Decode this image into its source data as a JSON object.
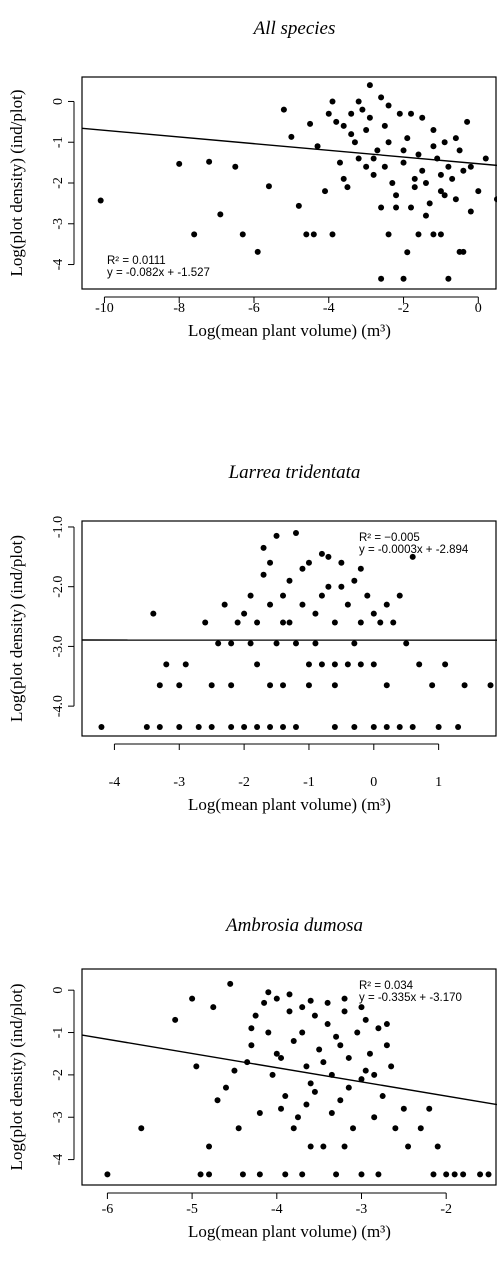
{
  "chart_data": [
    {
      "type": "scatter",
      "title": "All species",
      "xlabel": "Log(mean plant volume) (m³)",
      "ylabel": "Log(plot density) (ind/plot)",
      "xlim": [
        -10.6,
        0.5
      ],
      "ylim": [
        -4.6,
        0.6
      ],
      "xticks": [
        -10,
        -8,
        -6,
        -4,
        -2,
        0
      ],
      "yticks": [
        -4,
        -3,
        -2,
        -1,
        0
      ],
      "grid": false,
      "annotation": {
        "r2": "R² = 0.0111",
        "equation": "y = -0.082x + -1.527",
        "placement": "bottom-left"
      },
      "regression": {
        "slope": -0.082,
        "intercept": -1.527
      },
      "points": [
        [
          -10.1,
          -2.43
        ],
        [
          -8.0,
          -1.53
        ],
        [
          -7.6,
          -3.26
        ],
        [
          -7.2,
          -1.48
        ],
        [
          -6.9,
          -2.77
        ],
        [
          -6.5,
          -1.6
        ],
        [
          -6.3,
          -3.26
        ],
        [
          -5.9,
          -3.69
        ],
        [
          -5.6,
          -2.08
        ],
        [
          -5.2,
          -0.2
        ],
        [
          -5.0,
          -0.87
        ],
        [
          -4.8,
          -2.56
        ],
        [
          -4.5,
          -0.55
        ],
        [
          -4.3,
          -1.1
        ],
        [
          -4.1,
          -2.2
        ],
        [
          -3.9,
          -3.26
        ],
        [
          -4.4,
          -3.26
        ],
        [
          -4.6,
          -3.26
        ],
        [
          -3.8,
          -0.5
        ],
        [
          -3.6,
          -1.9
        ],
        [
          -3.4,
          -0.3
        ],
        [
          -3.2,
          -1.4
        ],
        [
          -3.0,
          -0.7
        ],
        [
          -2.8,
          -1.8
        ],
        [
          -2.6,
          -2.6
        ],
        [
          -2.4,
          -1.0
        ],
        [
          -2.2,
          -2.3
        ],
        [
          -2.0,
          -1.5
        ],
        [
          -1.8,
          -2.6
        ],
        [
          -1.6,
          -1.3
        ],
        [
          -1.4,
          -2.8
        ],
        [
          -1.2,
          -1.1
        ],
        [
          -1.0,
          -2.2
        ],
        [
          -0.8,
          -1.6
        ],
        [
          -0.6,
          -2.4
        ],
        [
          -0.4,
          -1.7
        ],
        [
          -0.2,
          -2.7
        ],
        [
          0.0,
          -2.2
        ],
        [
          -2.9,
          -0.4
        ],
        [
          -3.1,
          -0.2
        ],
        [
          -2.5,
          -0.6
        ],
        [
          -1.9,
          -0.9
        ],
        [
          -1.5,
          -0.4
        ],
        [
          -3.3,
          -1.0
        ],
        [
          -2.7,
          -1.2
        ],
        [
          -2.1,
          -0.3
        ],
        [
          -1.7,
          -1.9
        ],
        [
          -1.1,
          -1.4
        ],
        [
          -0.5,
          -1.2
        ],
        [
          -0.3,
          -0.5
        ],
        [
          -3.7,
          -1.5
        ],
        [
          -3.5,
          -2.1
        ],
        [
          -2.3,
          -2.0
        ],
        [
          -1.3,
          -2.5
        ],
        [
          -0.7,
          -1.9
        ],
        [
          -0.9,
          -1.0
        ],
        [
          -2.0,
          -4.35
        ],
        [
          -2.6,
          -4.35
        ],
        [
          -0.8,
          -4.35
        ],
        [
          -1.9,
          -3.7
        ],
        [
          -1.6,
          -3.26
        ],
        [
          -1.2,
          -3.26
        ],
        [
          -2.4,
          -3.26
        ],
        [
          -0.4,
          -3.69
        ],
        [
          -0.5,
          -3.69
        ],
        [
          -1.0,
          -3.26
        ],
        [
          -2.2,
          -2.6
        ],
        [
          -1.4,
          -2.0
        ],
        [
          -3.0,
          -1.6
        ],
        [
          -4.0,
          -0.3
        ],
        [
          -3.9,
          0.0
        ],
        [
          -2.6,
          0.1
        ],
        [
          -2.9,
          0.4
        ],
        [
          -3.2,
          0.0
        ],
        [
          -1.8,
          -0.3
        ],
        [
          -2.4,
          -0.1
        ],
        [
          -1.2,
          -0.7
        ],
        [
          -0.6,
          -0.9
        ],
        [
          -1.5,
          -1.7
        ],
        [
          -2.8,
          -1.4
        ],
        [
          -3.4,
          -0.8
        ],
        [
          -2.0,
          -1.2
        ],
        [
          -1.0,
          -1.8
        ],
        [
          -0.2,
          -1.6
        ],
        [
          0.2,
          -1.4
        ],
        [
          0.5,
          -2.4
        ],
        [
          -0.9,
          -2.3
        ],
        [
          -1.7,
          -2.1
        ],
        [
          -2.5,
          -1.6
        ],
        [
          -3.6,
          -0.6
        ]
      ]
    },
    {
      "type": "scatter",
      "title": "Larrea tridentata",
      "xlabel": "Log(mean plant volume) (m³)",
      "ylabel": "Log(plot density) (ind/plot)",
      "xlim": [
        -4.5,
        1.9
      ],
      "ylim": [
        -4.5,
        -0.9
      ],
      "xticks": [
        -4,
        -3,
        -2,
        -1,
        0,
        1
      ],
      "yticks": [
        -4.0,
        -3.0,
        -2.0,
        -1.0
      ],
      "ytick_labels": [
        "-4.0",
        "-3.0",
        "-2.0",
        "-1.0"
      ],
      "grid": false,
      "annotation": {
        "r2": "R² = −0.005",
        "equation": "y = -0.0003x + -2.894",
        "placement": "top-right"
      },
      "regression": {
        "slope": -0.0003,
        "intercept": -2.894
      },
      "points": [
        [
          -3.4,
          -2.45
        ],
        [
          -3.2,
          -3.3
        ],
        [
          -3.3,
          -3.65
        ],
        [
          -3.0,
          -3.65
        ],
        [
          -2.9,
          -3.3
        ],
        [
          -2.6,
          -2.6
        ],
        [
          -2.5,
          -3.65
        ],
        [
          -2.4,
          -2.95
        ],
        [
          -2.2,
          -3.65
        ],
        [
          -2.0,
          -2.45
        ],
        [
          -1.9,
          -2.15
        ],
        [
          -1.8,
          -2.6
        ],
        [
          -1.7,
          -1.35
        ],
        [
          -1.6,
          -2.3
        ],
        [
          -1.5,
          -1.15
        ],
        [
          -1.4,
          -2.6
        ],
        [
          -1.3,
          -1.9
        ],
        [
          -1.2,
          -1.1
        ],
        [
          -1.1,
          -2.3
        ],
        [
          -1.0,
          -1.6
        ],
        [
          -0.9,
          -2.45
        ],
        [
          -0.8,
          -1.45
        ],
        [
          -0.7,
          -2.0
        ],
        [
          -0.6,
          -2.6
        ],
        [
          -0.5,
          -1.6
        ],
        [
          -0.4,
          -2.3
        ],
        [
          -0.3,
          -1.9
        ],
        [
          -0.2,
          -1.7
        ],
        [
          -0.1,
          -2.15
        ],
        [
          0.0,
          -2.45
        ],
        [
          0.1,
          -2.6
        ],
        [
          0.2,
          -2.3
        ],
        [
          0.3,
          -2.6
        ],
        [
          0.5,
          -2.95
        ],
        [
          0.7,
          -3.3
        ],
        [
          0.9,
          -3.65
        ],
        [
          1.1,
          -3.3
        ],
        [
          1.4,
          -3.65
        ],
        [
          1.8,
          -3.65
        ],
        [
          0.6,
          -1.5
        ],
        [
          -1.5,
          -2.95
        ],
        [
          -1.2,
          -2.95
        ],
        [
          -1.0,
          -3.3
        ],
        [
          -0.8,
          -3.3
        ],
        [
          -0.6,
          -3.3
        ],
        [
          -0.4,
          -3.3
        ],
        [
          -0.2,
          -3.3
        ],
        [
          0.0,
          -3.3
        ],
        [
          0.2,
          -3.65
        ],
        [
          -1.8,
          -3.3
        ],
        [
          -1.4,
          -3.65
        ],
        [
          -1.0,
          -3.65
        ],
        [
          -0.6,
          -3.65
        ],
        [
          -2.2,
          -2.95
        ],
        [
          -0.3,
          -2.95
        ],
        [
          -0.9,
          -2.95
        ],
        [
          -1.6,
          -3.65
        ],
        [
          -2.1,
          -2.6
        ],
        [
          -1.3,
          -2.6
        ],
        [
          -0.5,
          -2.0
        ],
        [
          -3.5,
          -4.35
        ],
        [
          -3.3,
          -4.35
        ],
        [
          -3.0,
          -4.35
        ],
        [
          -2.7,
          -4.35
        ],
        [
          -2.5,
          -4.35
        ],
        [
          -2.2,
          -4.35
        ],
        [
          -2.0,
          -4.35
        ],
        [
          -1.8,
          -4.35
        ],
        [
          -1.6,
          -4.35
        ],
        [
          -1.4,
          -4.35
        ],
        [
          -1.2,
          -4.35
        ],
        [
          -0.6,
          -4.35
        ],
        [
          -0.3,
          -4.35
        ],
        [
          0.0,
          -4.35
        ],
        [
          0.2,
          -4.35
        ],
        [
          0.4,
          -4.35
        ],
        [
          0.6,
          -4.35
        ],
        [
          1.0,
          -4.35
        ],
        [
          1.3,
          -4.35
        ],
        [
          -4.2,
          -4.35
        ],
        [
          -1.7,
          -1.8
        ],
        [
          -1.1,
          -1.7
        ],
        [
          -0.7,
          -1.5
        ],
        [
          -1.4,
          -2.15
        ],
        [
          -0.2,
          -2.6
        ],
        [
          -2.3,
          -2.3
        ],
        [
          -1.9,
          -2.95
        ],
        [
          0.4,
          -2.15
        ],
        [
          -0.8,
          -2.15
        ],
        [
          -1.6,
          -1.6
        ]
      ]
    },
    {
      "type": "scatter",
      "title": "Ambrosia dumosa",
      "xlabel": "Log(mean plant volume) (m³)",
      "ylabel": "Log(plot density) (ind/plot)",
      "xlim": [
        -6.3,
        -1.4
      ],
      "ylim": [
        -4.6,
        0.5
      ],
      "xticks": [
        -6,
        -5,
        -4,
        -3,
        -2
      ],
      "yticks": [
        -4,
        -3,
        -2,
        -1,
        0
      ],
      "grid": false,
      "annotation": {
        "r2": "R² = 0.034",
        "equation": "y = -0.335x + -3.170",
        "placement": "top-right"
      },
      "regression": {
        "slope": -0.335,
        "intercept": -3.17
      },
      "points": [
        [
          -6.0,
          -4.35
        ],
        [
          -5.6,
          -3.26
        ],
        [
          -5.2,
          -0.7
        ],
        [
          -5.0,
          -0.2
        ],
        [
          -4.95,
          -1.8
        ],
        [
          -4.9,
          -4.35
        ],
        [
          -4.8,
          -3.69
        ],
        [
          -4.75,
          -0.4
        ],
        [
          -4.7,
          -2.6
        ],
        [
          -4.6,
          -2.3
        ],
        [
          -4.55,
          0.15
        ],
        [
          -4.5,
          -1.9
        ],
        [
          -4.45,
          -3.26
        ],
        [
          -4.4,
          -4.35
        ],
        [
          -4.3,
          -1.3
        ],
        [
          -4.25,
          -0.6
        ],
        [
          -4.2,
          -2.9
        ],
        [
          -4.15,
          -0.3
        ],
        [
          -4.1,
          -1.0
        ],
        [
          -4.05,
          -2.0
        ],
        [
          -4.0,
          -0.2
        ],
        [
          -3.95,
          -1.6
        ],
        [
          -3.9,
          -2.5
        ],
        [
          -3.85,
          -0.5
        ],
        [
          -3.8,
          -1.2
        ],
        [
          -3.75,
          -3.0
        ],
        [
          -3.7,
          -0.4
        ],
        [
          -3.65,
          -1.8
        ],
        [
          -3.6,
          -2.2
        ],
        [
          -3.55,
          -0.6
        ],
        [
          -3.5,
          -1.4
        ],
        [
          -3.45,
          -3.69
        ],
        [
          -3.4,
          -0.8
        ],
        [
          -3.35,
          -2.0
        ],
        [
          -3.3,
          -1.1
        ],
        [
          -3.25,
          -2.6
        ],
        [
          -3.2,
          -0.5
        ],
        [
          -3.15,
          -1.6
        ],
        [
          -3.1,
          -3.26
        ],
        [
          -3.05,
          -1.0
        ],
        [
          -3.0,
          -2.1
        ],
        [
          -2.95,
          -0.7
        ],
        [
          -2.9,
          -1.5
        ],
        [
          -2.85,
          -3.0
        ],
        [
          -2.8,
          -0.9
        ],
        [
          -2.75,
          -2.5
        ],
        [
          -2.7,
          -1.3
        ],
        [
          -2.65,
          -1.8
        ],
        [
          -2.6,
          -3.26
        ],
        [
          -2.5,
          -2.8
        ],
        [
          -2.45,
          -3.69
        ],
        [
          -2.3,
          -3.26
        ],
        [
          -2.2,
          -2.8
        ],
        [
          -2.15,
          -4.35
        ],
        [
          -2.1,
          -3.69
        ],
        [
          -2.0,
          -4.35
        ],
        [
          -1.9,
          -4.35
        ],
        [
          -1.8,
          -4.35
        ],
        [
          -1.6,
          -4.35
        ],
        [
          -1.5,
          -4.35
        ],
        [
          -3.9,
          -4.35
        ],
        [
          -3.7,
          -4.35
        ],
        [
          -3.3,
          -4.35
        ],
        [
          -3.0,
          -4.35
        ],
        [
          -2.8,
          -4.35
        ],
        [
          -4.2,
          -4.35
        ],
        [
          -4.8,
          -4.35
        ],
        [
          -3.6,
          -3.69
        ],
        [
          -3.2,
          -3.69
        ],
        [
          -3.8,
          -3.26
        ],
        [
          -4.1,
          -0.05
        ],
        [
          -3.85,
          -0.1
        ],
        [
          -3.6,
          -0.25
        ],
        [
          -3.4,
          -0.3
        ],
        [
          -3.2,
          -0.2
        ],
        [
          -3.0,
          -0.4
        ],
        [
          -4.3,
          -0.9
        ],
        [
          -4.0,
          -1.5
        ],
        [
          -3.7,
          -1.0
        ],
        [
          -3.45,
          -1.7
        ],
        [
          -3.25,
          -1.3
        ],
        [
          -2.95,
          -1.9
        ],
        [
          -2.7,
          -0.8
        ],
        [
          -3.55,
          -2.4
        ],
        [
          -3.15,
          -2.3
        ],
        [
          -2.85,
          -2.0
        ],
        [
          -4.35,
          -1.7
        ],
        [
          -3.95,
          -2.8
        ],
        [
          -3.65,
          -2.7
        ],
        [
          -3.35,
          -2.9
        ]
      ]
    }
  ]
}
